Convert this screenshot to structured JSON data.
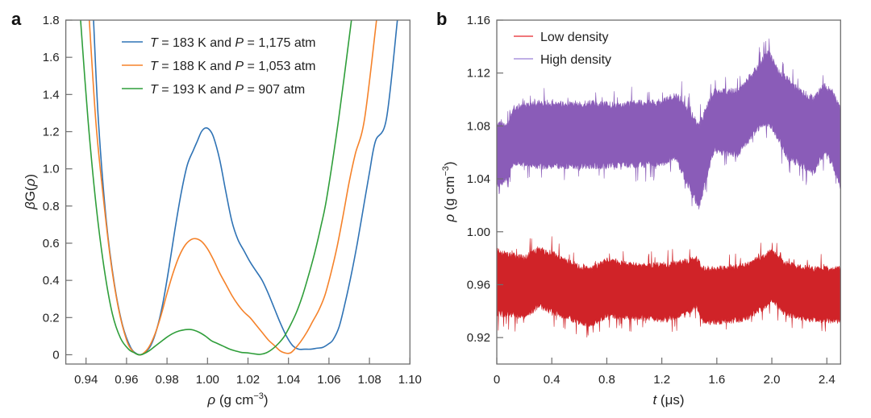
{
  "chart_data": [
    {
      "panel": "a",
      "type": "line",
      "title": "",
      "xlabel": "ρ (g cm⁻³)",
      "xlabel_parts": {
        "symbol": "ρ",
        "unit": " (g cm",
        "sup": "−3",
        "close": ")"
      },
      "ylabel": "βG(ρ)",
      "ylabel_parts": {
        "beta": "β",
        "rest": "G(",
        "rho": "ρ",
        "close": ")"
      },
      "xlim": [
        0.93,
        1.1
      ],
      "ylim": [
        -0.05,
        1.8
      ],
      "xticks": [
        0.94,
        0.96,
        0.98,
        1.0,
        1.02,
        1.04,
        1.06,
        1.08,
        1.1
      ],
      "xtick_labels": [
        "0.94",
        "0.96",
        "0.98",
        "1.00",
        "1.02",
        "1.04",
        "1.06",
        "1.08",
        "1.10"
      ],
      "yticks": [
        0,
        0.2,
        0.4,
        0.6,
        0.8,
        1.0,
        1.2,
        1.4,
        1.6,
        1.8
      ],
      "ytick_labels": [
        "0",
        "0.2",
        "0.4",
        "0.6",
        "0.8",
        "1.0",
        "1.2",
        "1.4",
        "1.6",
        "1.8"
      ],
      "grid": false,
      "legend_position": "top-center",
      "series": [
        {
          "name": "T = 183 K and P = 1,175 atm",
          "legend": {
            "T": "T",
            "t1": " = 183 K and ",
            "P": "P",
            "t2": " = 1,175 atm"
          },
          "color": "#2f73b5",
          "x": [
            0.9437,
            0.9461,
            0.95,
            0.954,
            0.958,
            0.962,
            0.965,
            0.967,
            0.969,
            0.972,
            0.975,
            0.978,
            0.981,
            0.984,
            0.987,
            0.99,
            0.993,
            0.995,
            0.997,
            0.999,
            1.001,
            1.003,
            1.006,
            1.009,
            1.012,
            1.015,
            1.018,
            1.021,
            1.024,
            1.027,
            1.03,
            1.033,
            1.036,
            1.039,
            1.042,
            1.045,
            1.048,
            1.051,
            1.054,
            1.057,
            1.06,
            1.062,
            1.065,
            1.068,
            1.071,
            1.074,
            1.077,
            1.08,
            1.083,
            1.0884,
            1.0938
          ],
          "y": [
            1.8,
            1.26,
            0.72,
            0.38,
            0.16,
            0.04,
            0.005,
            0.0,
            0.01,
            0.05,
            0.14,
            0.28,
            0.47,
            0.68,
            0.87,
            1.02,
            1.1,
            1.15,
            1.2,
            1.22,
            1.21,
            1.17,
            1.05,
            0.88,
            0.72,
            0.62,
            0.56,
            0.5,
            0.45,
            0.4,
            0.33,
            0.25,
            0.17,
            0.1,
            0.05,
            0.03,
            0.03,
            0.03,
            0.035,
            0.04,
            0.06,
            0.08,
            0.15,
            0.28,
            0.43,
            0.6,
            0.79,
            0.98,
            1.15,
            1.27,
            1.8
          ]
        },
        {
          "name": "T = 188 K and P = 1,053 atm",
          "legend": {
            "T": "T",
            "t1": " = 188 K and ",
            "P": "P",
            "t2": " = 1,053 atm"
          },
          "color": "#f5822a",
          "x": [
            0.9416,
            0.9448,
            0.948,
            0.952,
            0.956,
            0.96,
            0.963,
            0.966,
            0.968,
            0.971,
            0.974,
            0.977,
            0.98,
            0.983,
            0.986,
            0.989,
            0.992,
            0.9944,
            0.997,
            1.0,
            1.003,
            1.006,
            1.009,
            1.012,
            1.015,
            1.018,
            1.021,
            1.024,
            1.027,
            1.03,
            1.033,
            1.036,
            1.039,
            1.041,
            1.043,
            1.046,
            1.049,
            1.052,
            1.055,
            1.058,
            1.061,
            1.064,
            1.067,
            1.07,
            1.073,
            1.0776,
            1.0835
          ],
          "y": [
            1.8,
            1.26,
            0.9,
            0.52,
            0.25,
            0.08,
            0.02,
            0.0,
            0.005,
            0.04,
            0.11,
            0.21,
            0.33,
            0.44,
            0.53,
            0.59,
            0.62,
            0.624,
            0.61,
            0.57,
            0.51,
            0.44,
            0.38,
            0.32,
            0.27,
            0.23,
            0.2,
            0.16,
            0.12,
            0.08,
            0.05,
            0.02,
            0.008,
            0.01,
            0.03,
            0.07,
            0.12,
            0.18,
            0.24,
            0.32,
            0.44,
            0.58,
            0.75,
            0.93,
            1.08,
            1.27,
            1.8
          ]
        },
        {
          "name": "T = 193 K and P = 907 atm",
          "legend": {
            "T": "T",
            "t1": " = 193 K and ",
            "P": "P",
            "t2": " = 907 atm"
          },
          "color": "#2f9e3a",
          "x": [
            0.9373,
            0.941,
            0.945,
            0.949,
            0.953,
            0.957,
            0.961,
            0.964,
            0.966,
            0.968,
            0.971,
            0.974,
            0.977,
            0.98,
            0.983,
            0.986,
            0.989,
            0.9911,
            0.993,
            0.996,
            0.999,
            1.002,
            1.005,
            1.008,
            1.011,
            1.014,
            1.017,
            1.02,
            1.023,
            1.026,
            1.029,
            1.032,
            1.035,
            1.038,
            1.041,
            1.044,
            1.047,
            1.05,
            1.053,
            1.056,
            1.059,
            1.0648,
            1.0711
          ],
          "y": [
            1.8,
            1.26,
            0.8,
            0.46,
            0.22,
            0.09,
            0.03,
            0.01,
            0.0,
            0.003,
            0.02,
            0.045,
            0.07,
            0.095,
            0.115,
            0.128,
            0.135,
            0.136,
            0.133,
            0.12,
            0.1,
            0.075,
            0.06,
            0.045,
            0.03,
            0.02,
            0.012,
            0.01,
            0.005,
            0.002,
            0.01,
            0.03,
            0.06,
            0.1,
            0.16,
            0.23,
            0.32,
            0.43,
            0.55,
            0.69,
            0.85,
            1.27,
            1.8
          ]
        }
      ]
    },
    {
      "panel": "b",
      "type": "line",
      "title": "",
      "xlabel": "t (μs)",
      "xlabel_parts": {
        "symbol": "t",
        "unit": " (μs)"
      },
      "ylabel": "ρ (g cm⁻³)",
      "ylabel_parts": {
        "symbol": "ρ",
        "unit": " (g cm",
        "sup": "−3",
        "close": ")"
      },
      "xlim": [
        0,
        2.5
      ],
      "ylim": [
        0.9,
        1.16
      ],
      "xticks": [
        0,
        0.4,
        0.8,
        1.2,
        1.6,
        2.0,
        2.4
      ],
      "xtick_labels": [
        "0",
        "0.4",
        "0.8",
        "1.2",
        "1.6",
        "2.0",
        "2.4"
      ],
      "yticks": [
        0.92,
        0.96,
        1.0,
        1.04,
        1.08,
        1.12,
        1.16
      ],
      "ytick_labels": [
        "0.92",
        "0.96",
        "1.00",
        "1.04",
        "1.08",
        "1.12",
        "1.16"
      ],
      "grid": false,
      "legend_position": "top-left",
      "series": [
        {
          "name": "Low density",
          "color": "#d02328",
          "legend_color": "#e8262b",
          "t": [
            0.0,
            0.1,
            0.2,
            0.3,
            0.4,
            0.5,
            0.6,
            0.7,
            0.8,
            0.9,
            1.0,
            1.1,
            1.2,
            1.3,
            1.4,
            1.45,
            1.5,
            1.6,
            1.7,
            1.8,
            1.9,
            2.0,
            2.1,
            2.2,
            2.3,
            2.4,
            2.5
          ],
          "upper": [
            0.985,
            0.982,
            0.98,
            0.986,
            0.984,
            0.978,
            0.973,
            0.972,
            0.978,
            0.976,
            0.975,
            0.974,
            0.975,
            0.976,
            0.978,
            0.98,
            0.972,
            0.972,
            0.973,
            0.974,
            0.98,
            0.985,
            0.976,
            0.973,
            0.972,
            0.972,
            0.972
          ],
          "lower": [
            0.938,
            0.938,
            0.936,
            0.944,
            0.94,
            0.936,
            0.932,
            0.93,
            0.937,
            0.936,
            0.936,
            0.935,
            0.934,
            0.936,
            0.94,
            0.944,
            0.932,
            0.932,
            0.933,
            0.934,
            0.94,
            0.948,
            0.938,
            0.935,
            0.934,
            0.933,
            0.933
          ],
          "noise_seed": 7
        },
        {
          "name": "High density",
          "color": "#8a5cb8",
          "legend_color": "#9b7fd6",
          "t": [
            0.0,
            0.08,
            0.12,
            0.2,
            0.3,
            0.4,
            0.5,
            0.6,
            0.7,
            0.8,
            0.9,
            1.0,
            1.1,
            1.2,
            1.3,
            1.36,
            1.42,
            1.47,
            1.52,
            1.58,
            1.65,
            1.75,
            1.85,
            1.92,
            1.98,
            2.05,
            2.12,
            2.2,
            2.3,
            2.38,
            2.44,
            2.5
          ],
          "upper": [
            1.082,
            1.08,
            1.093,
            1.096,
            1.097,
            1.097,
            1.096,
            1.096,
            1.097,
            1.096,
            1.095,
            1.097,
            1.097,
            1.098,
            1.103,
            1.097,
            1.088,
            1.08,
            1.092,
            1.106,
            1.106,
            1.106,
            1.118,
            1.128,
            1.135,
            1.12,
            1.115,
            1.106,
            1.1,
            1.11,
            1.105,
            1.092
          ],
          "lower": [
            1.036,
            1.04,
            1.052,
            1.052,
            1.05,
            1.05,
            1.05,
            1.049,
            1.05,
            1.05,
            1.051,
            1.051,
            1.051,
            1.052,
            1.056,
            1.042,
            1.03,
            1.02,
            1.04,
            1.062,
            1.06,
            1.059,
            1.072,
            1.08,
            1.083,
            1.07,
            1.056,
            1.052,
            1.045,
            1.06,
            1.052,
            1.035
          ],
          "noise_seed": 13
        }
      ]
    }
  ],
  "panels": {
    "a": {
      "label": "a"
    },
    "b": {
      "label": "b"
    }
  }
}
